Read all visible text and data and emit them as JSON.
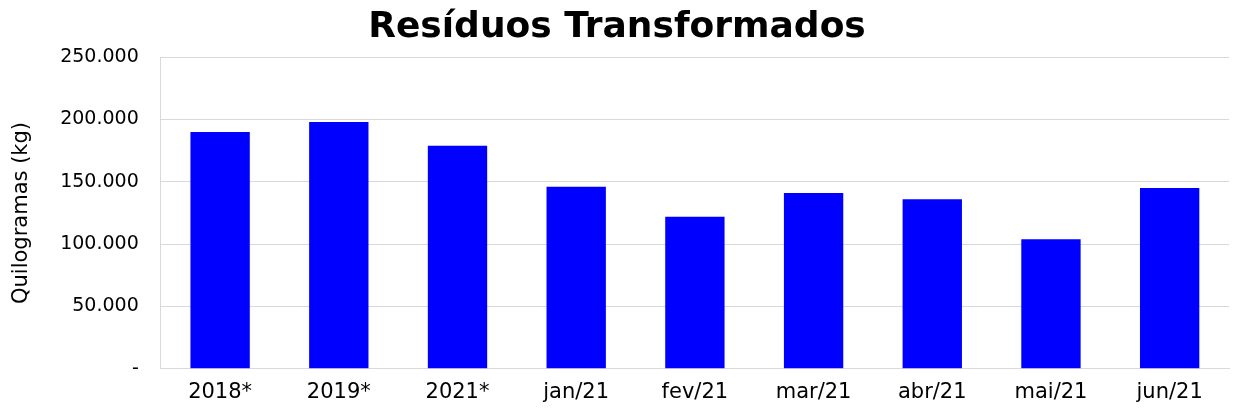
{
  "chart_data": {
    "type": "bar",
    "title": "Resíduos Transformados",
    "ylabel": "Quilogramas (kg)",
    "categories": [
      "2018*",
      "2019*",
      "2021*",
      "jan/21",
      "fev/21",
      "mar/21",
      "abr/21",
      "mai/21",
      "jun/21"
    ],
    "values": [
      190000,
      198000,
      179000,
      146000,
      122000,
      141000,
      136000,
      104000,
      145000
    ],
    "color": "#0000ff",
    "ylim": [
      0,
      250000
    ],
    "yticks": [
      {
        "value": 0,
        "label": "-"
      },
      {
        "value": 50000,
        "label": "50.000"
      },
      {
        "value": 100000,
        "label": "100.000"
      },
      {
        "value": 150000,
        "label": "150.000"
      },
      {
        "value": 200000,
        "label": "200.000"
      },
      {
        "value": 250000,
        "label": "250.000"
      }
    ],
    "grid": "y",
    "legend": false
  }
}
